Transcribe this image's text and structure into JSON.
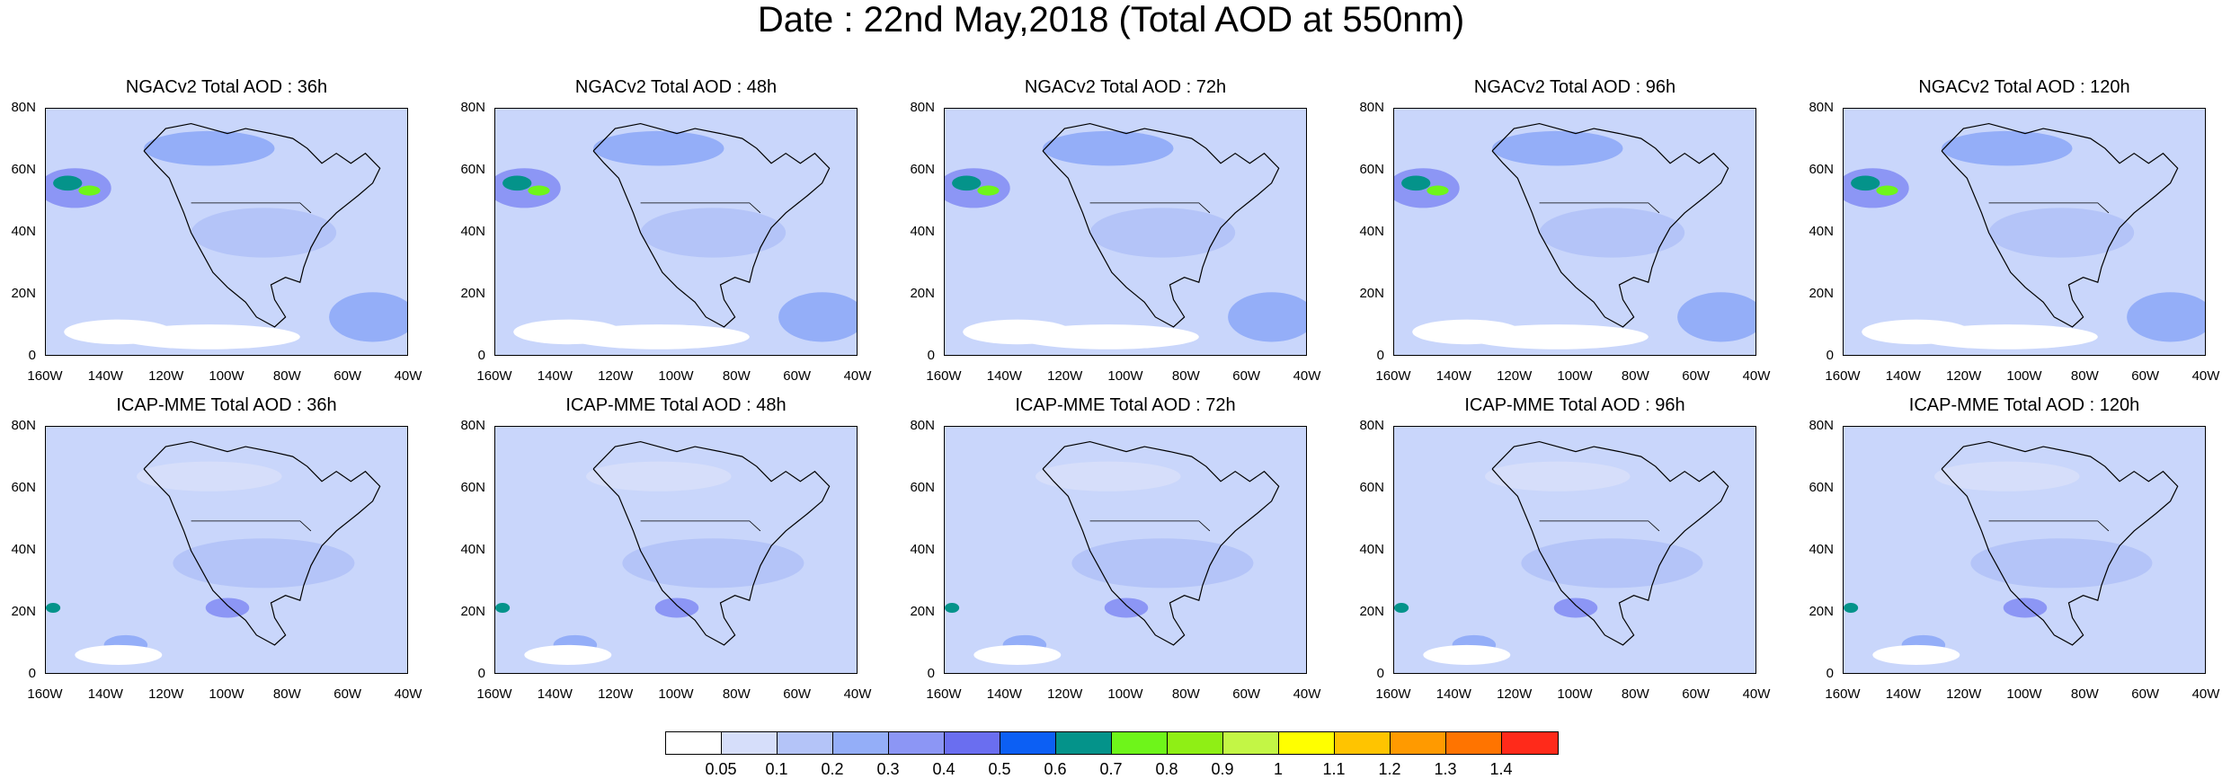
{
  "title": "Date : 22nd May,2018 (Total AOD at 550nm)",
  "panels": [
    {
      "title": "NGACv2 Total AOD : 36h"
    },
    {
      "title": "NGACv2 Total AOD : 48h"
    },
    {
      "title": "NGACv2 Total AOD : 72h"
    },
    {
      "title": "NGACv2 Total AOD : 96h"
    },
    {
      "title": "NGACv2 Total AOD : 120h"
    },
    {
      "title": "ICAP-MME Total AOD : 36h"
    },
    {
      "title": "ICAP-MME Total AOD : 48h"
    },
    {
      "title": "ICAP-MME Total AOD : 72h"
    },
    {
      "title": "ICAP-MME Total AOD : 96h"
    },
    {
      "title": "ICAP-MME Total AOD : 120h"
    }
  ],
  "lat_labels": [
    "80N",
    "60N",
    "40N",
    "20N",
    "0"
  ],
  "lon_labels": [
    "160W",
    "140W",
    "120W",
    "100W",
    "80W",
    "60W",
    "40W"
  ],
  "colorbar": {
    "colors": [
      "#ffffff",
      "#d6defa",
      "#b4c4f8",
      "#94aef8",
      "#8c96f5",
      "#6a6ef0",
      "#0c5ff4",
      "#04938a",
      "#6ef51a",
      "#8fef15",
      "#c3f645",
      "#ffff00",
      "#ffc400",
      "#ff9a00",
      "#ff7400",
      "#ff2a1a"
    ],
    "labels": [
      "0.05",
      "0.1",
      "0.2",
      "0.3",
      "0.4",
      "0.5",
      "0.6",
      "0.7",
      "0.8",
      "0.9",
      "1",
      "1.1",
      "1.2",
      "1.3",
      "1.4"
    ]
  }
}
